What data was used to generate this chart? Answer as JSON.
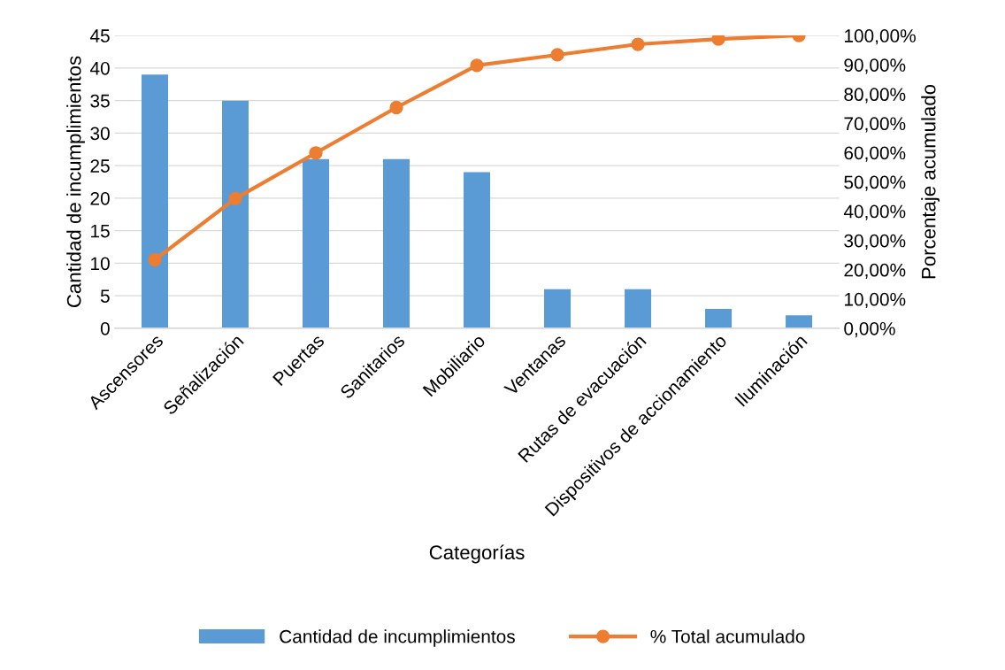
{
  "chart_data": {
    "type": "bar",
    "xlabel": "Categorías",
    "ylabel": "Cantidad de incumplimientos",
    "y2label": "Porcentaje acumulado",
    "categories": [
      "Ascensores",
      "Señalización",
      "Puertas",
      "Sanitarios",
      "Mobiliario",
      "Ventanas",
      "Rutas de evacuación",
      "Dispositivos de accionamiento",
      "Iluminación"
    ],
    "series": [
      {
        "name": "Cantidad de incumplimientos",
        "color": "#5b9bd5",
        "values": [
          39,
          35,
          26,
          26,
          24,
          6,
          6,
          3,
          2
        ]
      },
      {
        "name": "% Total acumulado",
        "type": "line",
        "axis": "y2",
        "color": "#ed7d31",
        "marker": "circle",
        "values": [
          23.4,
          44.3,
          59.9,
          75.4,
          89.8,
          93.4,
          97.0,
          98.8,
          100
        ]
      }
    ],
    "ylim": [
      0,
      45
    ],
    "yticks": [
      0,
      5,
      10,
      15,
      20,
      25,
      30,
      35,
      40,
      45
    ],
    "y2lim": [
      0,
      100
    ],
    "y2ticks": [
      {
        "value": 0,
        "label": "0,00%"
      },
      {
        "value": 10,
        "label": "10,00%"
      },
      {
        "value": 20,
        "label": "20,00%"
      },
      {
        "value": 30,
        "label": "30,00%"
      },
      {
        "value": 40,
        "label": "40,00%"
      },
      {
        "value": 50,
        "label": "50,00%"
      },
      {
        "value": 60,
        "label": "60,00%"
      },
      {
        "value": 70,
        "label": "70,00%"
      },
      {
        "value": 80,
        "label": "80,00%"
      },
      {
        "value": 90,
        "label": "90,00%"
      },
      {
        "value": 100,
        "label": "100,00%"
      }
    ],
    "grid": "y",
    "legend": "bottom"
  }
}
